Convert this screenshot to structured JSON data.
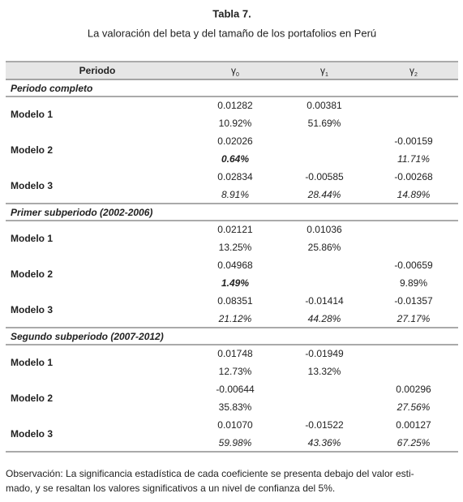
{
  "title": "Tabla 7.",
  "subtitle": "La valoración del beta y del tamaño de los portafolios en Perú",
  "table": {
    "header": [
      "Periodo",
      {
        "symbol": "γ",
        "sub": "0"
      },
      {
        "symbol": "γ",
        "sub": "1"
      },
      {
        "symbol": "γ",
        "sub": "2"
      }
    ],
    "sections": [
      {
        "title": "Periodo completo",
        "rows": [
          {
            "label": "Modelo 1",
            "cells": [
              [
                {
                  "text": "0.01282"
                },
                {
                  "text": "10.92%"
                }
              ],
              [
                {
                  "text": "0.00381"
                },
                {
                  "text": "51.69%"
                }
              ],
              null
            ]
          },
          {
            "label": "Modelo 2",
            "cells": [
              [
                {
                  "text": "0.02026"
                },
                {
                  "text": "0.64%",
                  "style": "bold-italic"
                }
              ],
              null,
              [
                {
                  "text": "-0.00159"
                },
                {
                  "text": "11.71%",
                  "style": "italic"
                }
              ]
            ]
          },
          {
            "label": "Modelo 3",
            "cells": [
              [
                {
                  "text": "0.02834"
                },
                {
                  "text": "8.91%",
                  "style": "italic"
                }
              ],
              [
                {
                  "text": "-0.00585"
                },
                {
                  "text": "28.44%",
                  "style": "italic"
                }
              ],
              [
                {
                  "text": "-0.00268"
                },
                {
                  "text": "14.89%",
                  "style": "italic"
                }
              ]
            ]
          }
        ]
      },
      {
        "title": "Primer subperiodo (2002-2006)",
        "rows": [
          {
            "label": "Modelo 1",
            "cells": [
              [
                {
                  "text": "0.02121"
                },
                {
                  "text": "13.25%"
                }
              ],
              [
                {
                  "text": "0.01036"
                },
                {
                  "text": "25.86%"
                }
              ],
              null
            ]
          },
          {
            "label": "Modelo 2",
            "cells": [
              [
                {
                  "text": "0.04968"
                },
                {
                  "text": "1.49%",
                  "style": "bold-italic"
                }
              ],
              null,
              [
                {
                  "text": "-0.00659"
                },
                {
                  "text": "9.89%"
                }
              ]
            ]
          },
          {
            "label": "Modelo 3",
            "cells": [
              [
                {
                  "text": "0.08351"
                },
                {
                  "text": "21.12%",
                  "style": "italic"
                }
              ],
              [
                {
                  "text": "-0.01414"
                },
                {
                  "text": "44.28%",
                  "style": "italic"
                }
              ],
              [
                {
                  "text": "-0.01357"
                },
                {
                  "text": "27.17%",
                  "style": "italic"
                }
              ]
            ]
          }
        ]
      },
      {
        "title": "Segundo subperiodo (2007-2012)",
        "rows": [
          {
            "label": "Modelo 1",
            "cells": [
              [
                {
                  "text": "0.01748"
                },
                {
                  "text": "12.73%"
                }
              ],
              [
                {
                  "text": "-0.01949"
                },
                {
                  "text": "13.32%"
                }
              ],
              null
            ]
          },
          {
            "label": "Modelo 2",
            "cells": [
              [
                {
                  "text": "-0.00644"
                },
                {
                  "text": "35.83%"
                }
              ],
              null,
              [
                {
                  "text": "0.00296"
                },
                {
                  "text": "27.56%",
                  "style": "italic"
                }
              ]
            ]
          },
          {
            "label": "Modelo 3",
            "cells": [
              [
                {
                  "text": "0.01070"
                },
                {
                  "text": "59.98%",
                  "style": "italic"
                }
              ],
              [
                {
                  "text": "-0.01522"
                },
                {
                  "text": "43.36%",
                  "style": "italic"
                }
              ],
              [
                {
                  "text": "0.00127"
                },
                {
                  "text": "67.25%",
                  "style": "italic"
                }
              ]
            ]
          }
        ]
      }
    ]
  },
  "note": [
    "Observación: La significancia estadística de cada coeficiente  se presenta debajo del valor esti-",
    "mado, y se resaltan los valores significativos a un nivel de confianza del 5%."
  ]
}
